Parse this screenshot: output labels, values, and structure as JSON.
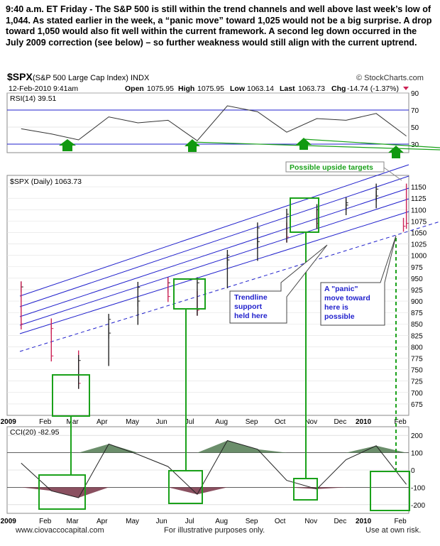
{
  "commentary": "9:40 a.m. ET Friday -  The S&P 500 is still within the trend channels and well above last week’s low of 1,044.  As stated earlier in the week, a “panic move” toward 1,025 would not be a big surprise.  A drop toward 1,050 would also fit well within the current framework.   A second leg down occurred in the July 2009 correction (see below) – so further weakness would still align with the current uptrend.",
  "header": {
    "symbol": "$SPX",
    "name": "(S&P 500 Large Cap Index) INDX",
    "brand": "© StockCharts.com",
    "date": "12-Feb-2010 9:41am",
    "open_label": "Open",
    "open": "1075.95",
    "high_label": "High",
    "high": "1075.95",
    "low_label": "Low",
    "low": "1063.14",
    "last_label": "Last",
    "last": "1063.73",
    "chg_label": "Chg",
    "chg": "-14.74 (-1.37%)"
  },
  "footer": {
    "site": "www.ciovaccocapital.com",
    "illustrative": "For illustrative purposes only.",
    "risk": "Use at own risk."
  },
  "annotations": {
    "targets": "Possible upside targets",
    "trendline": [
      "Trendline",
      "support",
      "held here"
    ],
    "panic": [
      "A \"panic\"",
      "move toward",
      "here is",
      "possible"
    ]
  },
  "colors": {
    "channel": "#1f1fcc",
    "annotation_green": "#1aa11a",
    "arrow_green": "#119911",
    "bar_up": "#222222",
    "bar_down": "#cc2255",
    "cci_fill": "#6b8e6b",
    "rsi_line": "#333333"
  },
  "chart_data": [
    {
      "type": "line",
      "title": "RSI(14) 39.51",
      "indicator": "RSI(14)",
      "last": 39.51,
      "ylim": [
        20,
        90
      ],
      "yticks": [
        "30",
        "50",
        "70",
        "90"
      ],
      "reference_lines": [
        30,
        70
      ],
      "x": [
        "2009-01",
        "2009-02",
        "2009-03",
        "2009-04",
        "2009-05",
        "2009-06",
        "2009-07",
        "2009-08",
        "2009-09",
        "2009-10",
        "2009-11",
        "2009-12",
        "2010-01",
        "2010-02"
      ],
      "values": [
        48,
        42,
        35,
        62,
        55,
        58,
        34,
        75,
        68,
        44,
        60,
        58,
        66,
        39.51
      ]
    },
    {
      "type": "bar",
      "title": "$SPX (Daily) 1063.73",
      "series_name": "$SPX (Daily)",
      "last": 1063.73,
      "ylim": [
        650,
        1175
      ],
      "yticks": [
        "675",
        "700",
        "725",
        "750",
        "775",
        "800",
        "825",
        "850",
        "875",
        "900",
        "925",
        "950",
        "975",
        "1000",
        "1025",
        "1050",
        "1075",
        "1100",
        "1125",
        "1150"
      ],
      "xticks": [
        "2009",
        "Feb",
        "Mar",
        "Apr",
        "May",
        "Jun",
        "Jul",
        "Aug",
        "Sep",
        "Oct",
        "Nov",
        "Dec",
        "2010",
        "Feb"
      ],
      "x": [
        "2009-01",
        "2009-01-15",
        "2009-02",
        "2009-02-15",
        "2009-03",
        "2009-03-15",
        "2009-04",
        "2009-04-15",
        "2009-05",
        "2009-05-15",
        "2009-06",
        "2009-06-15",
        "2009-07",
        "2009-07-15",
        "2009-08",
        "2009-08-15",
        "2009-09",
        "2009-09-15",
        "2009-10",
        "2009-10-15",
        "2009-11",
        "2009-11-15",
        "2009-12",
        "2009-12-15",
        "2010-01",
        "2010-01-15",
        "2010-02",
        "2010-02-12"
      ],
      "values": [
        931,
        850,
        840,
        780,
        720,
        770,
        830,
        860,
        900,
        930,
        940,
        910,
        880,
        940,
        990,
        1000,
        1030,
        1060,
        1040,
        1090,
        1070,
        1100,
        1110,
        1115,
        1130,
        1145,
        1070,
        1063.73
      ]
    },
    {
      "type": "line",
      "title": "CCI(20) -82.95",
      "indicator": "CCI(20)",
      "last": -82.95,
      "ylim": [
        -250,
        250
      ],
      "yticks": [
        "200",
        "100",
        "0",
        "-100",
        "-200"
      ],
      "reference_lines": [
        100,
        -100
      ],
      "xticks": [
        "2009",
        "Feb",
        "Mar",
        "Apr",
        "May",
        "Jun",
        "Jul",
        "Aug",
        "Sep",
        "Oct",
        "Nov",
        "Dec",
        "2010",
        "Feb"
      ],
      "x": [
        "2009-01",
        "2009-02",
        "2009-03",
        "2009-04",
        "2009-05",
        "2009-06",
        "2009-07",
        "2009-08",
        "2009-09",
        "2009-10",
        "2009-11",
        "2009-12",
        "2010-01",
        "2010-02"
      ],
      "values": [
        40,
        -120,
        -160,
        150,
        90,
        20,
        -140,
        170,
        120,
        -60,
        -110,
        60,
        140,
        -82.95
      ]
    }
  ]
}
